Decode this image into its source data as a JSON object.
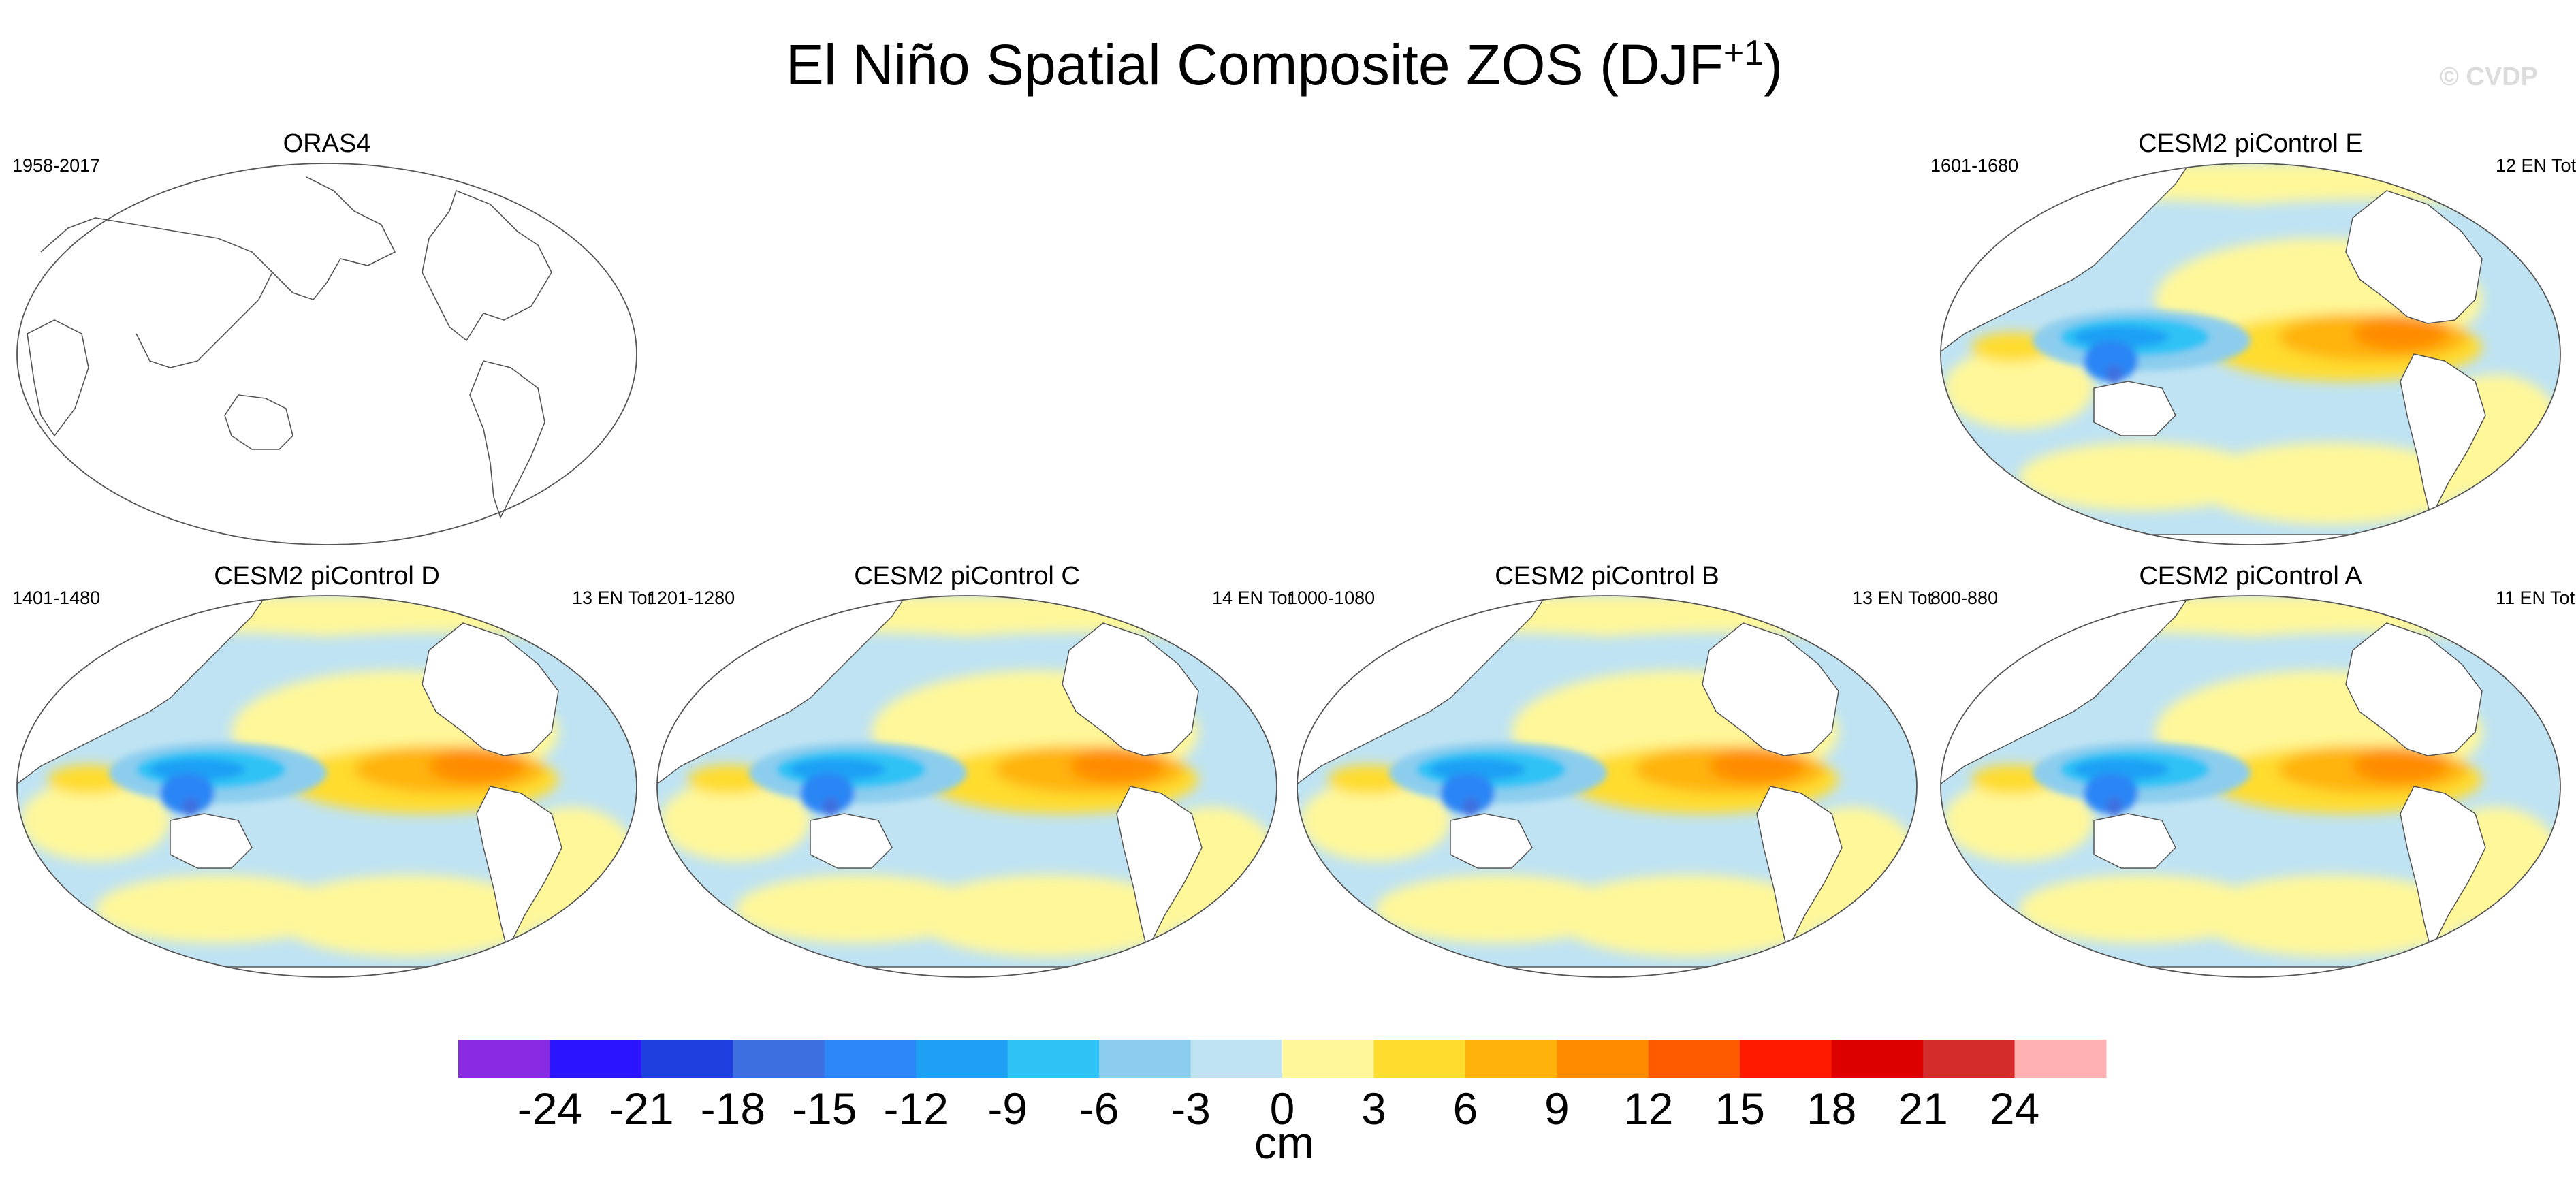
{
  "figure": {
    "title": "El Niño Spatial Composite ZOS (DJF",
    "title_sup": "+1",
    "title_end": ")",
    "credit": "© CVDP"
  },
  "panels": [
    {
      "id": "oras4",
      "title": "ORAS4",
      "years": "1958-2017",
      "count": "",
      "has_data": false
    },
    {
      "id": "cesm2-e",
      "title": "CESM2 piControl E",
      "years": "1601-1680",
      "count": "12 EN Tot",
      "has_data": true
    },
    {
      "id": "cesm2-d",
      "title": "CESM2 piControl D",
      "years": "1401-1480",
      "count": "13 EN Tot",
      "has_data": true
    },
    {
      "id": "cesm2-c",
      "title": "CESM2 piControl C",
      "years": "1201-1280",
      "count": "14 EN Tot",
      "has_data": true
    },
    {
      "id": "cesm2-b",
      "title": "CESM2 piControl B",
      "years": "1000-1080",
      "count": "13 EN Tot",
      "has_data": true
    },
    {
      "id": "cesm2-a",
      "title": "CESM2 piControl A",
      "years": "800-880",
      "count": "11 EN Tot",
      "has_data": true
    }
  ],
  "colorbar": {
    "units": "cm",
    "ticks": [
      "-24",
      "-21",
      "-18",
      "-15",
      "-12",
      "-9",
      "-6",
      "-3",
      "0",
      "3",
      "6",
      "9",
      "12",
      "15",
      "18",
      "21",
      "24"
    ],
    "colors": [
      "#8a2be2",
      "#2b14ff",
      "#1f3fe0",
      "#3d6fe0",
      "#2c86f5",
      "#1ea0f5",
      "#2ec2f5",
      "#8ccdee",
      "#bfe3f3",
      "#fff79a",
      "#ffdc2e",
      "#ffb30a",
      "#ff8c00",
      "#ff5a00",
      "#ff1a00",
      "#dd0000",
      "#d42b2b",
      "#ffb0b0"
    ]
  }
}
